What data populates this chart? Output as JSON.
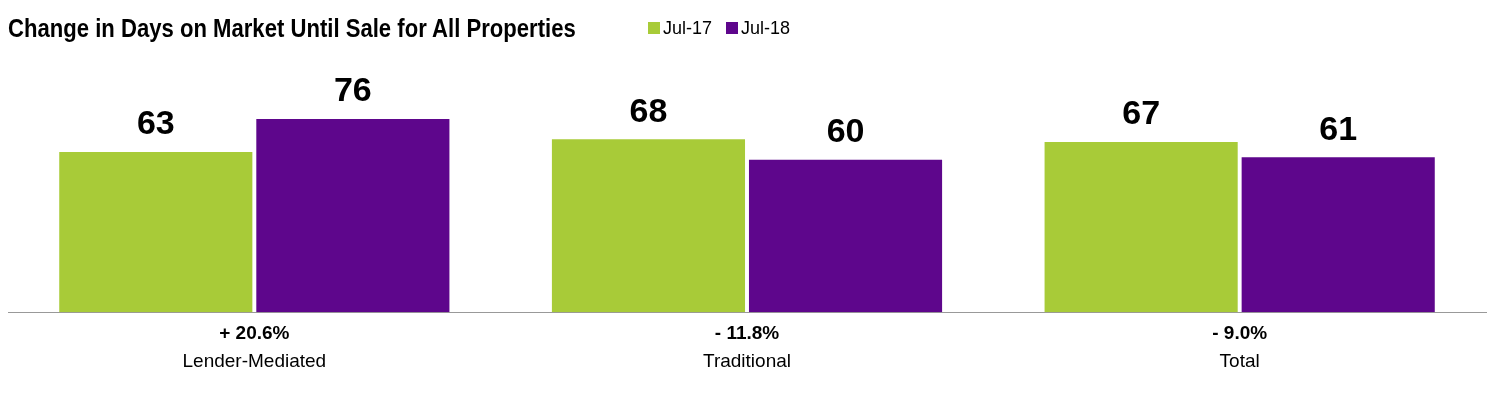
{
  "chart_data": {
    "type": "bar",
    "title": "Change in Days on Market Until Sale for All Properties",
    "categories": [
      "Lender-Mediated",
      "Traditional",
      "Total"
    ],
    "series": [
      {
        "name": "Jul-17",
        "color": "#a8cb38",
        "values": [
          63,
          68,
          67
        ]
      },
      {
        "name": "Jul-18",
        "color": "#5e068c",
        "values": [
          76,
          60,
          61
        ]
      }
    ],
    "data_labels": true,
    "legend": "top",
    "grid": false,
    "annotations": [
      "+ 20.6%",
      "- 11.8%",
      "- 9.0%"
    ]
  }
}
